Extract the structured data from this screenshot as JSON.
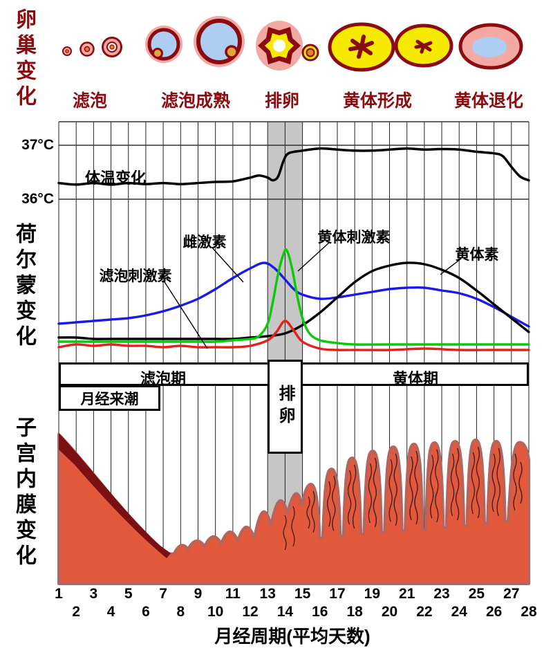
{
  "left_labels": {
    "ovary": "卵巢变化",
    "hormone": "荷尔蒙变化",
    "endometrium": "子宫内膜变化"
  },
  "ovary_stages": {
    "labels": [
      "滤泡",
      "滤泡成熟",
      "排卵",
      "黄体形成",
      "黄体退化"
    ]
  },
  "temperature": {
    "curve_label": "体温变化",
    "tick_37": "37°C",
    "tick_36": "36°C"
  },
  "hormone_labels": {
    "estrogen": "雌激素",
    "fsh": "滤泡刺激素",
    "lh": "黄体刺激素",
    "progesterone": "黄体素"
  },
  "phases": {
    "follicular": "滤泡期",
    "luteal": "黄体期",
    "menstruation": "月经来潮",
    "ovulation": "排卵"
  },
  "x_axis": {
    "title": "月经周期(平均天数)",
    "days": [
      1,
      2,
      3,
      4,
      5,
      6,
      7,
      8,
      9,
      10,
      11,
      12,
      13,
      14,
      15,
      16,
      17,
      18,
      19,
      20,
      21,
      22,
      23,
      24,
      25,
      26,
      27,
      28
    ]
  },
  "colors": {
    "accent_dark_red": "#8a0b10",
    "ovulation_band": "#c6c6c6",
    "endometrium": "#e2593b",
    "endometrium_shed": "#7a1014",
    "endometrium_outline": "#b5655d",
    "estrogen": "#1a1ae6",
    "lh": "#09c909",
    "fsh": "#e3221a",
    "progesterone": "#000000",
    "temperature": "#000000"
  },
  "chart_data": {
    "type": "line",
    "x_unit": "day of menstrual cycle",
    "x_range": [
      1,
      28
    ],
    "ovulation_band_days": [
      13,
      15
    ],
    "panels": [
      {
        "name": "体温变化",
        "ylabel": "°C",
        "yticks": [
          36,
          37
        ],
        "series": [
          {
            "id": "bbt",
            "name": "体温变化",
            "color": "#000000",
            "points": [
              [
                1,
                36.3
              ],
              [
                2,
                36.27
              ],
              [
                3,
                36.3
              ],
              [
                4,
                36.27
              ],
              [
                5,
                36.3
              ],
              [
                6,
                36.28
              ],
              [
                7,
                36.3
              ],
              [
                8,
                36.28
              ],
              [
                9,
                36.3
              ],
              [
                10,
                36.32
              ],
              [
                11,
                36.33
              ],
              [
                12,
                36.4
              ],
              [
                12.5,
                36.44
              ],
              [
                13,
                36.4
              ],
              [
                13.3,
                36.35
              ],
              [
                13.6,
                36.42
              ],
              [
                13.9,
                36.7
              ],
              [
                14.2,
                36.85
              ],
              [
                15,
                36.9
              ],
              [
                16,
                36.94
              ],
              [
                17,
                36.92
              ],
              [
                18,
                36.9
              ],
              [
                19,
                36.9
              ],
              [
                20,
                36.92
              ],
              [
                21,
                36.94
              ],
              [
                22,
                36.92
              ],
              [
                23,
                36.93
              ],
              [
                24,
                36.92
              ],
              [
                25,
                36.88
              ],
              [
                26,
                36.85
              ],
              [
                26.5,
                36.8
              ],
              [
                27,
                36.6
              ],
              [
                27.5,
                36.42
              ],
              [
                28,
                36.35
              ]
            ]
          }
        ]
      },
      {
        "name": "荷尔蒙变化",
        "y_unit": "relative level 0-100",
        "series": [
          {
            "id": "estrogen",
            "name": "雌激素",
            "color": "#1a1ae6",
            "points": [
              [
                1,
                22
              ],
              [
                2,
                23
              ],
              [
                3,
                24
              ],
              [
                4,
                25
              ],
              [
                5,
                26
              ],
              [
                6,
                28
              ],
              [
                7,
                31
              ],
              [
                8,
                35
              ],
              [
                9,
                40
              ],
              [
                10,
                47
              ],
              [
                11,
                55
              ],
              [
                12,
                62
              ],
              [
                12.8,
                66
              ],
              [
                13.4,
                62
              ],
              [
                14,
                54
              ],
              [
                14.5,
                47
              ],
              [
                15,
                43
              ],
              [
                16,
                40
              ],
              [
                17,
                41
              ],
              [
                18,
                43
              ],
              [
                19,
                45
              ],
              [
                20,
                47
              ],
              [
                21,
                48
              ],
              [
                22,
                48
              ],
              [
                23,
                46
              ],
              [
                24,
                44
              ],
              [
                25,
                40
              ],
              [
                26,
                34
              ],
              [
                27,
                27
              ],
              [
                28,
                20
              ]
            ]
          },
          {
            "id": "progesterone",
            "name": "黄体素",
            "color": "#000000",
            "points": [
              [
                1,
                12
              ],
              [
                2,
                12
              ],
              [
                3,
                11
              ],
              [
                4,
                11
              ],
              [
                5,
                11
              ],
              [
                6,
                11
              ],
              [
                7,
                11
              ],
              [
                8,
                11
              ],
              [
                9,
                11
              ],
              [
                10,
                11
              ],
              [
                11,
                11
              ],
              [
                12,
                12
              ],
              [
                13,
                13
              ],
              [
                14,
                15
              ],
              [
                15,
                21
              ],
              [
                16,
                30
              ],
              [
                17,
                41
              ],
              [
                18,
                52
              ],
              [
                19,
                60
              ],
              [
                20,
                64
              ],
              [
                21,
                66
              ],
              [
                22,
                65
              ],
              [
                23,
                61
              ],
              [
                24,
                55
              ],
              [
                25,
                46
              ],
              [
                26,
                36
              ],
              [
                27,
                26
              ],
              [
                28,
                16
              ]
            ]
          },
          {
            "id": "lh",
            "name": "黄体刺激素",
            "color": "#09c909",
            "points": [
              [
                1,
                9
              ],
              [
                2,
                9
              ],
              [
                3,
                9
              ],
              [
                4,
                9
              ],
              [
                5,
                9
              ],
              [
                6,
                9
              ],
              [
                7,
                9
              ],
              [
                8,
                9
              ],
              [
                9,
                9
              ],
              [
                10,
                9
              ],
              [
                11,
                10
              ],
              [
                12,
                11
              ],
              [
                12.5,
                13
              ],
              [
                13,
                22
              ],
              [
                13.3,
                38
              ],
              [
                13.6,
                58
              ],
              [
                13.9,
                72
              ],
              [
                14.1,
                75
              ],
              [
                14.4,
                62
              ],
              [
                14.7,
                42
              ],
              [
                15,
                26
              ],
              [
                15.4,
                15
              ],
              [
                16,
                10
              ],
              [
                17,
                8
              ],
              [
                18,
                7
              ],
              [
                20,
                7
              ],
              [
                22,
                7
              ],
              [
                24,
                7
              ],
              [
                26,
                7
              ],
              [
                28,
                7
              ]
            ]
          },
          {
            "id": "fsh",
            "name": "滤泡刺激素",
            "color": "#e3221a",
            "points": [
              [
                1,
                5
              ],
              [
                2,
                7
              ],
              [
                3,
                6
              ],
              [
                4,
                7
              ],
              [
                5,
                6
              ],
              [
                6,
                6
              ],
              [
                7,
                5
              ],
              [
                8,
                6
              ],
              [
                9,
                5
              ],
              [
                10,
                5
              ],
              [
                11,
                5
              ],
              [
                12,
                6
              ],
              [
                13,
                10
              ],
              [
                13.5,
                16
              ],
              [
                14,
                24
              ],
              [
                14.5,
                17
              ],
              [
                15,
                9
              ],
              [
                16,
                4
              ],
              [
                17,
                3
              ],
              [
                18,
                3
              ],
              [
                20,
                3
              ],
              [
                22,
                4
              ],
              [
                24,
                3
              ],
              [
                26,
                3
              ],
              [
                28,
                3
              ]
            ]
          }
        ]
      }
    ]
  }
}
